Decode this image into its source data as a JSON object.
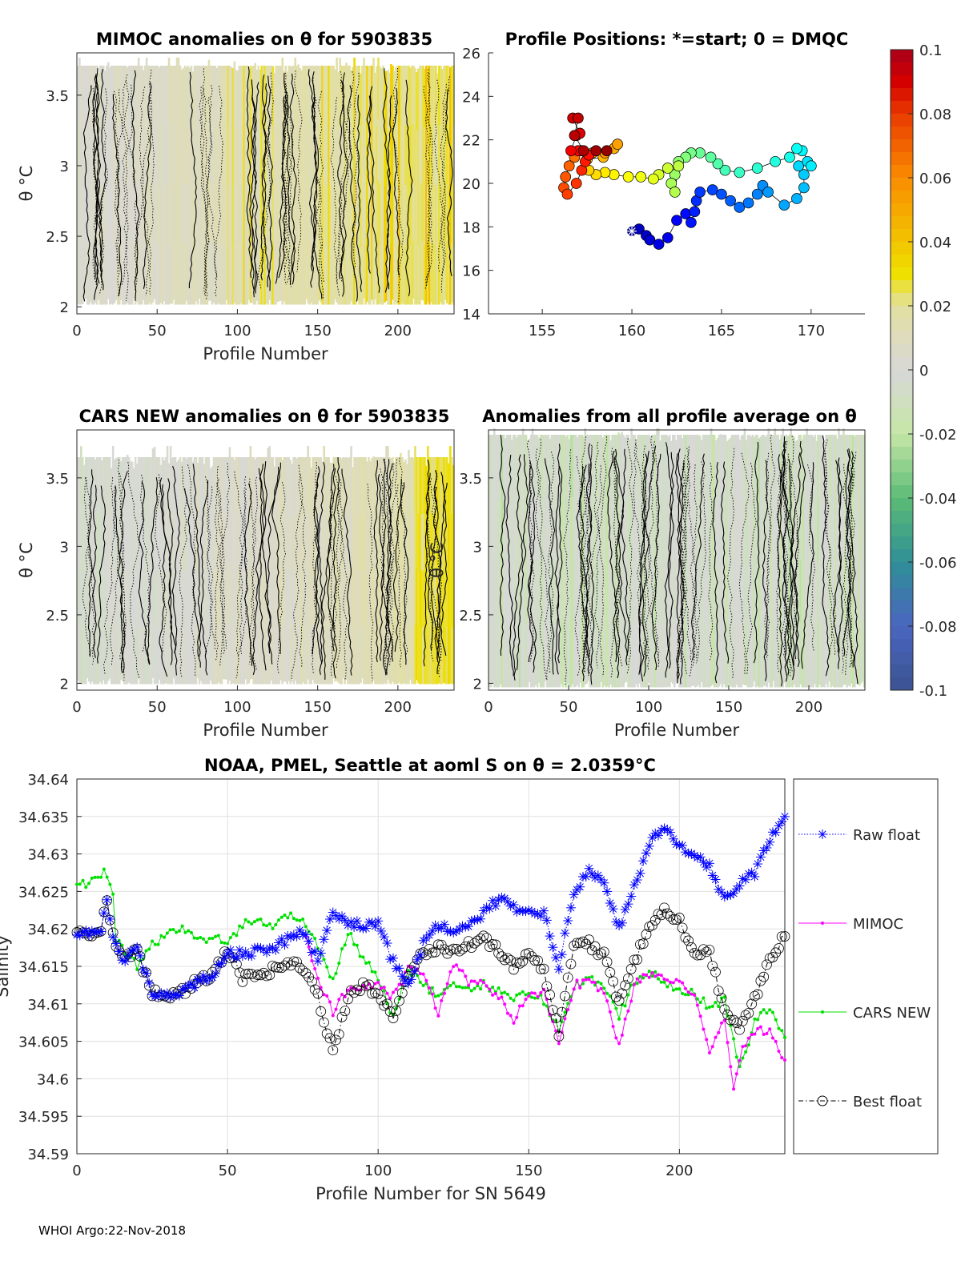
{
  "footer": "WHOI Argo:22-Nov-2018",
  "colors": {
    "raw": "#0000ff",
    "mimoc": "#ff00ff",
    "cars": "#00e000",
    "best": "#000000"
  },
  "chart_data": [
    {
      "type": "heatmap",
      "title": "MIMOC anomalies on θ  for 5903835",
      "xlabel": "Profile Number",
      "ylabel": "θ °C",
      "xlim": [
        0,
        235
      ],
      "ylim": [
        1.95,
        3.8
      ],
      "xticks": [
        0,
        50,
        100,
        150,
        200
      ],
      "yticks": [
        2,
        2.5,
        3,
        3.5
      ]
    },
    {
      "type": "scatter",
      "title": "Profile Positions: *=start; 0 = DMQC",
      "xlim": [
        152,
        173
      ],
      "ylim": [
        14,
        26
      ],
      "xticks": [
        155,
        160,
        165,
        170
      ],
      "yticks": [
        14,
        16,
        18,
        20,
        22,
        24,
        26
      ],
      "positions": [
        [
          160.0,
          17.8
        ],
        [
          160.4,
          17.9
        ],
        [
          160.8,
          17.6
        ],
        [
          161.0,
          17.4
        ],
        [
          161.5,
          17.2
        ],
        [
          162.0,
          17.5
        ],
        [
          162.5,
          18.3
        ],
        [
          163.0,
          18.6
        ],
        [
          163.3,
          18.2
        ],
        [
          163.5,
          18.7
        ],
        [
          163.6,
          19.2
        ],
        [
          163.8,
          19.6
        ],
        [
          164.5,
          19.7
        ],
        [
          165.0,
          19.5
        ],
        [
          165.5,
          19.2
        ],
        [
          166.0,
          18.9
        ],
        [
          166.5,
          19.1
        ],
        [
          167.0,
          19.5
        ],
        [
          167.3,
          19.9
        ],
        [
          167.6,
          19.6
        ],
        [
          168.5,
          19.0
        ],
        [
          169.2,
          19.3
        ],
        [
          169.6,
          19.8
        ],
        [
          169.6,
          20.4
        ],
        [
          169.3,
          20.8
        ],
        [
          169.8,
          21.0
        ],
        [
          170.0,
          20.8
        ],
        [
          169.5,
          21.5
        ],
        [
          169.2,
          21.6
        ],
        [
          168.8,
          21.2
        ],
        [
          168.0,
          21.0
        ],
        [
          167.0,
          20.7
        ],
        [
          166.0,
          20.5
        ],
        [
          165.2,
          20.6
        ],
        [
          164.8,
          20.9
        ],
        [
          164.4,
          21.2
        ],
        [
          163.8,
          21.4
        ],
        [
          163.3,
          21.4
        ],
        [
          163.0,
          21.2
        ],
        [
          162.6,
          21.0
        ],
        [
          162.4,
          20.4
        ],
        [
          162.2,
          20.0
        ],
        [
          162.4,
          19.6
        ],
        [
          162.6,
          20.8
        ],
        [
          162.0,
          20.7
        ],
        [
          161.5,
          20.4
        ],
        [
          161.2,
          20.2
        ],
        [
          160.5,
          20.3
        ],
        [
          159.8,
          20.3
        ],
        [
          159.0,
          20.4
        ],
        [
          158.5,
          20.5
        ],
        [
          158.0,
          20.4
        ],
        [
          157.6,
          20.6
        ],
        [
          157.5,
          21.1
        ],
        [
          158.4,
          21.2
        ],
        [
          159.0,
          21.6
        ],
        [
          159.2,
          21.8
        ],
        [
          158.5,
          21.4
        ],
        [
          157.8,
          21.4
        ],
        [
          157.2,
          21.5
        ],
        [
          156.8,
          21.2
        ],
        [
          156.5,
          20.8
        ],
        [
          156.3,
          20.3
        ],
        [
          156.2,
          19.8
        ],
        [
          156.4,
          19.5
        ],
        [
          156.9,
          20.0
        ],
        [
          157.2,
          20.6
        ],
        [
          157.4,
          21.0
        ],
        [
          157.6,
          21.3
        ],
        [
          157.0,
          21.5
        ],
        [
          156.6,
          21.5
        ],
        [
          156.9,
          22.2
        ],
        [
          157.1,
          22.3
        ],
        [
          156.7,
          23.0
        ],
        [
          157.0,
          23.0
        ],
        [
          156.8,
          22.2
        ],
        [
          157.3,
          21.5
        ],
        [
          158.0,
          21.5
        ],
        [
          158.6,
          21.5
        ]
      ]
    },
    {
      "type": "heatmap",
      "title": "CARS NEW anomalies on θ for 5903835",
      "xlabel": "Profile Number",
      "ylabel": "θ °C",
      "xlim": [
        0,
        235
      ],
      "ylim": [
        1.95,
        3.85
      ],
      "xticks": [
        0,
        50,
        100,
        150,
        200
      ],
      "yticks": [
        2,
        2.5,
        3,
        3.5
      ]
    },
    {
      "type": "heatmap",
      "title": "Anomalies from all profile average on θ",
      "xlabel": "Profile Number",
      "ylabel": "θ °C",
      "xlim": [
        0,
        235
      ],
      "ylim": [
        1.95,
        3.85
      ],
      "xticks": [
        0,
        50,
        100,
        150,
        200
      ],
      "yticks": [
        2,
        2.5,
        3,
        3.5
      ]
    },
    {
      "type": "colorbar",
      "range": [
        -0.1,
        0.1
      ],
      "ticks": [
        "0.1",
        "0.08",
        "0.06",
        "0.04",
        "0.02",
        "0",
        "-0.02",
        "-0.04",
        "-0.06",
        "-0.08",
        "-0.1"
      ]
    },
    {
      "type": "line",
      "title": "NOAA, PMEL, Seattle at aoml S on θ = 2.0359°C",
      "xlabel": "Profile Number for SN 5649",
      "ylabel": "Salinity",
      "xlim": [
        0,
        235
      ],
      "ylim": [
        34.59,
        34.64
      ],
      "xticks": [
        0,
        50,
        100,
        150,
        200
      ],
      "yticks": [
        "34.59",
        "34.595",
        "34.6",
        "34.605",
        "34.61",
        "34.615",
        "34.62",
        "34.625",
        "34.63",
        "34.635",
        "34.64"
      ],
      "grid": true,
      "legend_position": "outside-right",
      "series": [
        {
          "name": "Raw float",
          "key": "raw",
          "x": [
            0,
            5,
            8,
            10,
            12,
            15,
            20,
            25,
            30,
            35,
            40,
            45,
            50,
            55,
            60,
            65,
            70,
            75,
            80,
            85,
            90,
            95,
            100,
            105,
            110,
            115,
            120,
            125,
            130,
            135,
            140,
            145,
            150,
            155,
            160,
            165,
            170,
            175,
            180,
            185,
            190,
            195,
            200,
            205,
            210,
            215,
            220,
            225,
            230,
            235
          ],
          "y": [
            34.6195,
            34.6195,
            34.6195,
            34.624,
            34.619,
            34.616,
            34.617,
            34.6115,
            34.611,
            34.6115,
            34.613,
            34.614,
            34.617,
            34.6165,
            34.617,
            34.6175,
            34.6185,
            34.6195,
            34.616,
            34.622,
            34.621,
            34.6205,
            34.6205,
            34.6155,
            34.6125,
            34.618,
            34.6205,
            34.6195,
            34.6205,
            34.622,
            34.624,
            34.623,
            34.622,
            34.622,
            34.615,
            34.625,
            34.628,
            34.626,
            34.62,
            34.6255,
            34.6315,
            34.6335,
            34.631,
            34.6295,
            34.6285,
            34.624,
            34.626,
            34.6275,
            34.632,
            34.635
          ]
        },
        {
          "name": "MIMOC",
          "key": "mimoc",
          "x": [
            76,
            80,
            85,
            90,
            95,
            100,
            105,
            110,
            115,
            120,
            125,
            130,
            135,
            140,
            145,
            150,
            155,
            160,
            165,
            170,
            175,
            180,
            185,
            190,
            195,
            200,
            205,
            210,
            215,
            218,
            220,
            225,
            230,
            235
          ],
          "y": [
            34.619,
            34.613,
            34.609,
            34.612,
            34.612,
            34.6125,
            34.611,
            34.6145,
            34.6145,
            34.6085,
            34.6155,
            34.613,
            34.6125,
            34.611,
            34.608,
            34.6115,
            34.6115,
            34.605,
            34.6125,
            34.613,
            34.6115,
            34.6045,
            34.6125,
            34.614,
            34.6135,
            34.6125,
            34.6115,
            34.603,
            34.608,
            34.5985,
            34.603,
            34.6065,
            34.6065,
            34.6025
          ]
        },
        {
          "name": "CARS NEW",
          "key": "cars",
          "x": [
            0,
            3,
            5,
            10,
            12,
            13,
            20,
            25,
            30,
            35,
            40,
            45,
            50,
            55,
            60,
            65,
            70,
            75,
            80,
            85,
            90,
            95,
            100,
            105,
            110,
            115,
            120,
            125,
            130,
            135,
            140,
            145,
            150,
            155,
            160,
            165,
            170,
            175,
            180,
            185,
            190,
            195,
            200,
            205,
            210,
            215,
            220,
            225,
            230,
            235
          ],
          "y": [
            34.6265,
            34.626,
            34.627,
            34.6275,
            34.6245,
            34.6185,
            34.615,
            34.618,
            34.619,
            34.6205,
            34.6185,
            34.619,
            34.6185,
            34.6205,
            34.6215,
            34.62,
            34.622,
            34.6215,
            34.6175,
            34.613,
            34.6195,
            34.616,
            34.6135,
            34.608,
            34.6145,
            34.6125,
            34.611,
            34.613,
            34.612,
            34.6125,
            34.612,
            34.6105,
            34.6115,
            34.6105,
            34.6065,
            34.6125,
            34.6135,
            34.612,
            34.6085,
            34.613,
            34.6145,
            34.613,
            34.612,
            34.6115,
            34.6095,
            34.6105,
            34.6015,
            34.6075,
            34.6095,
            34.6055
          ]
        },
        {
          "name": "Best float",
          "key": "best",
          "x": [
            0,
            5,
            8,
            10,
            12,
            15,
            20,
            25,
            30,
            35,
            40,
            45,
            50,
            55,
            60,
            65,
            70,
            75,
            80,
            85,
            90,
            95,
            100,
            105,
            110,
            115,
            120,
            125,
            130,
            135,
            140,
            145,
            150,
            155,
            160,
            165,
            170,
            175,
            180,
            185,
            190,
            195,
            200,
            205,
            210,
            215,
            220,
            225,
            230,
            235
          ],
          "y": [
            34.6195,
            34.6195,
            34.6195,
            34.624,
            34.619,
            34.616,
            34.617,
            34.6115,
            34.611,
            34.6115,
            34.613,
            34.614,
            34.617,
            34.6135,
            34.6138,
            34.6145,
            34.6155,
            34.615,
            34.611,
            34.6035,
            34.611,
            34.6125,
            34.6115,
            34.6085,
            34.6135,
            34.617,
            34.6175,
            34.617,
            34.618,
            34.6185,
            34.617,
            34.615,
            34.6165,
            34.6145,
            34.606,
            34.6175,
            34.618,
            34.6165,
            34.61,
            34.6155,
            34.6205,
            34.6225,
            34.621,
            34.617,
            34.617,
            34.609,
            34.607,
            34.6105,
            34.616,
            34.619
          ]
        }
      ]
    }
  ]
}
